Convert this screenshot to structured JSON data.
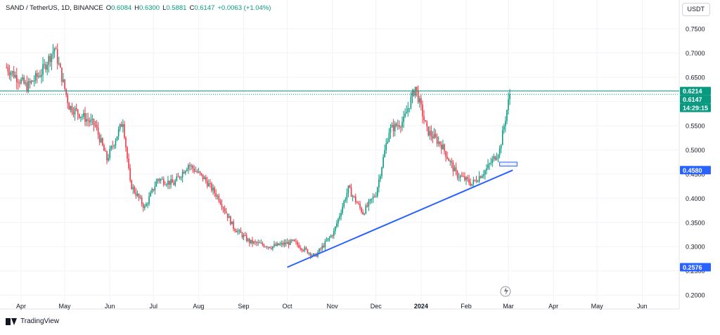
{
  "header": {
    "symbol": "SAND / TetherUS, 1D, BINANCE",
    "o_label": "O",
    "o_value": "0.6084",
    "h_label": "H",
    "h_value": "0.6300",
    "l_label": "L",
    "l_value": "0.5881",
    "c_label": "C",
    "c_value": "0.6147",
    "change": "+0.0063 (+1.04%)"
  },
  "currency_button": "USDT",
  "footer": {
    "brand": "TradingView"
  },
  "chart_data": {
    "type": "candlestick",
    "title": "SAND / TetherUS, 1D, BINANCE",
    "colors": {
      "up": "#089981",
      "down": "#f23645",
      "trendline": "#2962ff",
      "level_line": "#089981",
      "price_tag": "#089981",
      "level_tag": "#2962ff"
    },
    "y_axis": {
      "range": [
        0.18,
        0.76
      ],
      "ticks": [
        "0.7500",
        "0.7000",
        "0.6500",
        "0.6000",
        "0.5500",
        "0.5000",
        "0.4500",
        "0.4000",
        "0.3500",
        "0.3000",
        "0.2500",
        "0.2000"
      ]
    },
    "x_axis": {
      "labels": [
        "Apr",
        "May",
        "Jun",
        "Jul",
        "Aug",
        "Sep",
        "Oct",
        "Nov",
        "Dec",
        "2024",
        "Feb",
        "Mar",
        "Apr",
        "May",
        "Jun"
      ]
    },
    "grid": true,
    "price_labels": [
      {
        "text": "0.6214",
        "price": 0.6214,
        "style": "level"
      },
      {
        "text": "0.6147",
        "price": 0.6147,
        "style": "last"
      },
      {
        "text": "14:29:15",
        "price": 0.6147,
        "style": "countdown"
      },
      {
        "text": "0.4580",
        "price": 0.458,
        "style": "trend"
      },
      {
        "text": "0.2576",
        "price": 0.2576,
        "style": "trend"
      }
    ],
    "horizontal_lines": [
      {
        "price": 0.6214,
        "style": "solid"
      },
      {
        "price": 0.6147,
        "style": "dotted"
      }
    ],
    "trendline": {
      "start": {
        "x": "2023-10-01",
        "y": 0.2576
      },
      "end": {
        "x": "2024-03-04",
        "y": 0.458
      }
    },
    "rectangle": {
      "x1": "2024-02-24",
      "x2": "2024-03-07",
      "y_top": 0.4745,
      "y_bottom": 0.4665
    },
    "close_path": [
      [
        "2023-03-22",
        0.67
      ],
      [
        "2023-04-05",
        0.63
      ],
      [
        "2023-04-15",
        0.66
      ],
      [
        "2023-04-24",
        0.71
      ],
      [
        "2023-05-04",
        0.59
      ],
      [
        "2023-05-22",
        0.55
      ],
      [
        "2023-05-30",
        0.48
      ],
      [
        "2023-06-10",
        0.56
      ],
      [
        "2023-06-15",
        0.43
      ],
      [
        "2023-06-25",
        0.38
      ],
      [
        "2023-07-04",
        0.44
      ],
      [
        "2023-07-15",
        0.43
      ],
      [
        "2023-07-25",
        0.47
      ],
      [
        "2023-08-05",
        0.44
      ],
      [
        "2023-08-15",
        0.4
      ],
      [
        "2023-08-25",
        0.34
      ],
      [
        "2023-09-05",
        0.31
      ],
      [
        "2023-09-20",
        0.3
      ],
      [
        "2023-10-05",
        0.31
      ],
      [
        "2023-10-20",
        0.28
      ],
      [
        "2023-11-02",
        0.33
      ],
      [
        "2023-11-12",
        0.42
      ],
      [
        "2023-11-22",
        0.37
      ],
      [
        "2023-12-01",
        0.41
      ],
      [
        "2023-12-10",
        0.54
      ],
      [
        "2023-12-20",
        0.56
      ],
      [
        "2023-12-28",
        0.63
      ],
      [
        "2024-01-05",
        0.54
      ],
      [
        "2024-01-15",
        0.51
      ],
      [
        "2024-01-25",
        0.45
      ],
      [
        "2024-02-05",
        0.43
      ],
      [
        "2024-02-15",
        0.46
      ],
      [
        "2024-02-24",
        0.5
      ],
      [
        "2024-03-02",
        0.615
      ]
    ]
  }
}
